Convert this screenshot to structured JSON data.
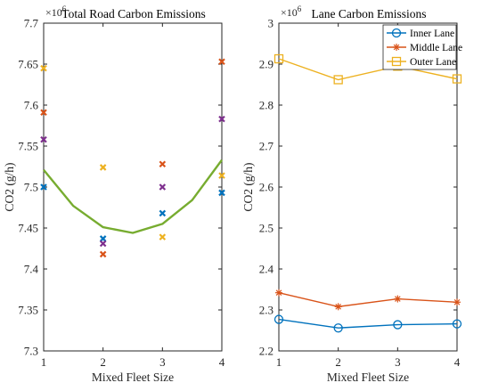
{
  "chart_data": [
    {
      "type": "scatter",
      "title": "Total Road Carbon Emissions",
      "xlabel": "Mixed Fleet Size",
      "ylabel": "CO2 (g/h)",
      "exponent": "×10",
      "exponent_power": "6",
      "xlim": [
        1,
        4
      ],
      "ylim": [
        7.3,
        7.7
      ],
      "xticks": [
        1,
        2,
        3,
        4
      ],
      "xtick_labels": [
        "1",
        "2",
        "3",
        "4"
      ],
      "yticks": [
        7.3,
        7.35,
        7.4,
        7.45,
        7.5,
        7.55,
        7.6,
        7.65,
        7.7
      ],
      "ytick_labels": [
        "7.3",
        "7.35",
        "7.4",
        "7.45",
        "7.5",
        "7.55",
        "7.6",
        "7.65",
        "7.7"
      ],
      "grid": false,
      "points": [
        {
          "x": 1,
          "y": 7.645,
          "color": "#EDB120"
        },
        {
          "x": 1,
          "y": 7.591,
          "color": "#D95319"
        },
        {
          "x": 1,
          "y": 7.558,
          "color": "#7E2F8E"
        },
        {
          "x": 1,
          "y": 7.5,
          "color": "#0072BD"
        },
        {
          "x": 2,
          "y": 7.524,
          "color": "#EDB120"
        },
        {
          "x": 2,
          "y": 7.437,
          "color": "#0072BD"
        },
        {
          "x": 2,
          "y": 7.431,
          "color": "#7E2F8E"
        },
        {
          "x": 2,
          "y": 7.418,
          "color": "#D95319"
        },
        {
          "x": 3,
          "y": 7.528,
          "color": "#D95319"
        },
        {
          "x": 3,
          "y": 7.5,
          "color": "#7E2F8E"
        },
        {
          "x": 3,
          "y": 7.468,
          "color": "#0072BD"
        },
        {
          "x": 3,
          "y": 7.439,
          "color": "#EDB120"
        },
        {
          "x": 4,
          "y": 7.653,
          "color": "#D95319"
        },
        {
          "x": 4,
          "y": 7.583,
          "color": "#7E2F8E"
        },
        {
          "x": 4,
          "y": 7.514,
          "color": "#EDB120"
        },
        {
          "x": 4,
          "y": 7.493,
          "color": "#0072BD"
        }
      ],
      "fit_line": {
        "color": "#77AC30",
        "x": [
          1,
          1.5,
          2,
          2.5,
          3,
          3.5,
          4
        ],
        "y": [
          7.521,
          7.477,
          7.451,
          7.444,
          7.455,
          7.484,
          7.533
        ]
      }
    },
    {
      "type": "line",
      "title": "Lane Carbon Emissions",
      "xlabel": "Mixed Fleet Size",
      "ylabel": "CO2 (g/h)",
      "exponent": "×10",
      "exponent_power": "6",
      "xlim": [
        1,
        4
      ],
      "ylim": [
        2.2,
        3.0
      ],
      "xticks": [
        1,
        2,
        3,
        4
      ],
      "xtick_labels": [
        "1",
        "2",
        "3",
        "4"
      ],
      "yticks": [
        2.2,
        2.3,
        2.4,
        2.5,
        2.6,
        2.7,
        2.8,
        2.9,
        3.0
      ],
      "ytick_labels": [
        "2.2",
        "2.3",
        "2.4",
        "2.5",
        "2.6",
        "2.7",
        "2.8",
        "2.9",
        "3"
      ],
      "grid": false,
      "legend_position": "top-right",
      "x": [
        1,
        2,
        3,
        4
      ],
      "series": [
        {
          "name": "Inner Lane",
          "values": [
            2.277,
            2.256,
            2.264,
            2.266
          ],
          "color": "#0072BD",
          "marker": "circle"
        },
        {
          "name": "Middle Lane",
          "values": [
            2.342,
            2.308,
            2.327,
            2.319
          ],
          "color": "#D95319",
          "marker": "asterisk"
        },
        {
          "name": "Outer Lane",
          "values": [
            2.913,
            2.862,
            2.895,
            2.864
          ],
          "color": "#EDB120",
          "marker": "square"
        }
      ]
    }
  ]
}
